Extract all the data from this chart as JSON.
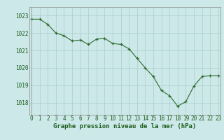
{
  "x": [
    0,
    1,
    2,
    3,
    4,
    5,
    6,
    7,
    8,
    9,
    10,
    11,
    12,
    13,
    14,
    15,
    16,
    17,
    18,
    19,
    20,
    21,
    22,
    23
  ],
  "y": [
    1022.8,
    1022.8,
    1022.5,
    1022.0,
    1021.85,
    1021.55,
    1021.6,
    1021.35,
    1021.65,
    1021.7,
    1021.4,
    1021.35,
    1021.1,
    1020.55,
    1020.0,
    1019.5,
    1018.7,
    1018.4,
    1017.8,
    1018.05,
    1018.95,
    1019.5,
    1019.55,
    1019.55
  ],
  "line_color": "#2d6a2d",
  "marker_color": "#2d6a2d",
  "bg_color": "#cce8e8",
  "grid_color": "#aacece",
  "title": "Graphe pression niveau de la mer (hPa)",
  "xlabel_ticks": [
    "0",
    "1",
    "2",
    "3",
    "4",
    "5",
    "6",
    "7",
    "8",
    "9",
    "10",
    "11",
    "12",
    "13",
    "14",
    "15",
    "16",
    "17",
    "18",
    "19",
    "20",
    "21",
    "22",
    "23"
  ],
  "yticks": [
    1018,
    1019,
    1020,
    1021,
    1022,
    1023
  ],
  "ylim": [
    1017.3,
    1023.5
  ],
  "xlim": [
    -0.3,
    23.3
  ],
  "title_color": "#1a5c1a",
  "title_fontsize": 6.5,
  "tick_fontsize": 5.5,
  "line_width": 0.8,
  "marker_size": 3.5
}
